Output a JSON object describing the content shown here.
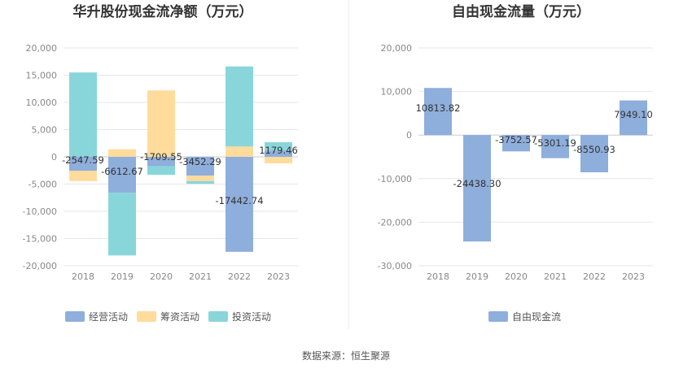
{
  "source_label": "数据来源：恒生聚源",
  "chart_data": [
    {
      "type": "bar",
      "stacked": true,
      "title": "华升股份现金流净额（万元）",
      "categories": [
        "2018",
        "2019",
        "2020",
        "2021",
        "2022",
        "2023"
      ],
      "ylim": [
        -20000,
        20000
      ],
      "yticks": [
        20000,
        15000,
        10000,
        5000,
        0,
        -5000,
        -10000,
        -15000,
        -20000
      ],
      "ytick_labels": [
        "20,000",
        "15,000",
        "10,000",
        "5,000",
        "0",
        "-5,000",
        "-10,000",
        "-15,000",
        "-20,000"
      ],
      "grid": true,
      "legend_position": "bottom-left",
      "series": [
        {
          "name": "经营活动",
          "color": "#8eaedc",
          "values": [
            -2547.59,
            -6612.67,
            -1709.55,
            -3452.29,
            -17442.74,
            1179.46
          ]
        },
        {
          "name": "筹资活动",
          "color": "#ffdb9c",
          "values": [
            -1900,
            1400,
            12200,
            -1000,
            1900,
            -1200
          ]
        },
        {
          "name": "投资活动",
          "color": "#88d6da",
          "values": [
            15500,
            -11500,
            -1600,
            -500,
            14700,
            1500
          ]
        }
      ],
      "data_labels": [
        "-2547.59",
        "-6612.67",
        "-1709.55",
        "-3452.29",
        "-17442.74",
        "1179.46"
      ]
    },
    {
      "type": "bar",
      "title": "自由现金流量（万元）",
      "categories": [
        "2018",
        "2019",
        "2020",
        "2021",
        "2022",
        "2023"
      ],
      "ylim": [
        -30000,
        20000
      ],
      "yticks": [
        20000,
        10000,
        0,
        -10000,
        -20000,
        -30000
      ],
      "ytick_labels": [
        "20,000",
        "10,000",
        "0",
        "-10,000",
        "-20,000",
        "-30,000"
      ],
      "grid": true,
      "legend_position": "bottom-center",
      "series": [
        {
          "name": "自由现金流",
          "color": "#8eaedc",
          "values": [
            10813.82,
            -24438.3,
            -3752.57,
            -5301.19,
            -8550.93,
            7949.1
          ]
        }
      ],
      "data_labels": [
        "10813.82",
        "-24438.30",
        "-3752.57",
        "-5301.19",
        "-8550.93",
        "7949.10"
      ]
    }
  ]
}
